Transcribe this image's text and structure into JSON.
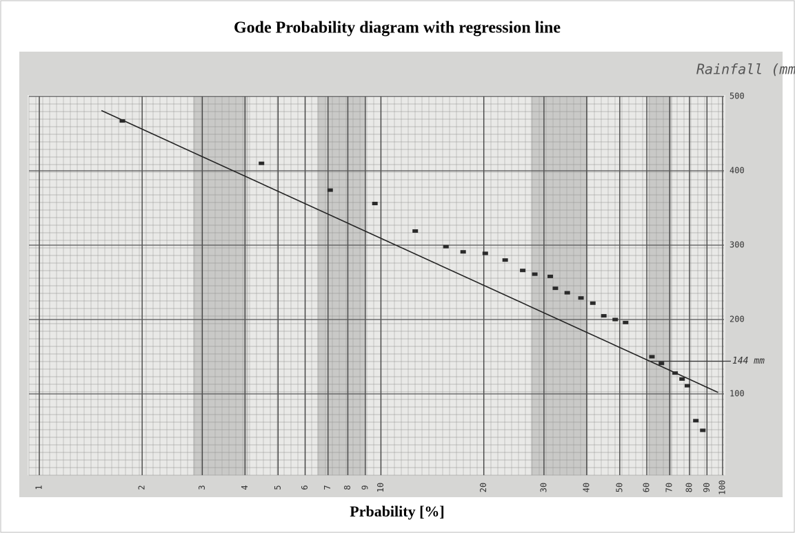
{
  "chart_data": {
    "type": "scatter",
    "title": "Gode Probability diagram with regression line",
    "x_label": "Prbability [%]",
    "y_label": "Rainfall (mm)",
    "x": [
      1.75,
      4.47,
      7.1,
      9.6,
      12.6,
      15.5,
      17.4,
      20.2,
      23.1,
      26,
      28.2,
      31.3,
      32.4,
      35.1,
      38.5,
      41.7,
      44.9,
      48.5,
      52,
      62.1,
      66.2,
      72.6,
      76.1,
      78.9,
      83.5,
      87.5
    ],
    "values": [
      467,
      410,
      374,
      356,
      319,
      298,
      291,
      289,
      280,
      266,
      261,
      258,
      242,
      236,
      229,
      222,
      205,
      200,
      196,
      150,
      141,
      128,
      120,
      111,
      64,
      51
    ],
    "color": "#2a2a2a",
    "regression": {
      "x": [
        1.52,
        97
      ],
      "y": [
        481,
        102
      ]
    },
    "annotation": {
      "text": "144 mm",
      "y": 144
    },
    "xscale": "log",
    "xlim": [
      1,
      100
    ],
    "xticks": [
      1,
      2,
      3,
      4,
      5,
      6,
      7,
      8,
      9,
      10,
      20,
      30,
      40,
      50,
      60,
      70,
      80,
      90,
      100
    ],
    "ylim": [
      0,
      500
    ],
    "yticks": [
      100,
      200,
      300,
      400,
      500
    ],
    "grid": true
  }
}
